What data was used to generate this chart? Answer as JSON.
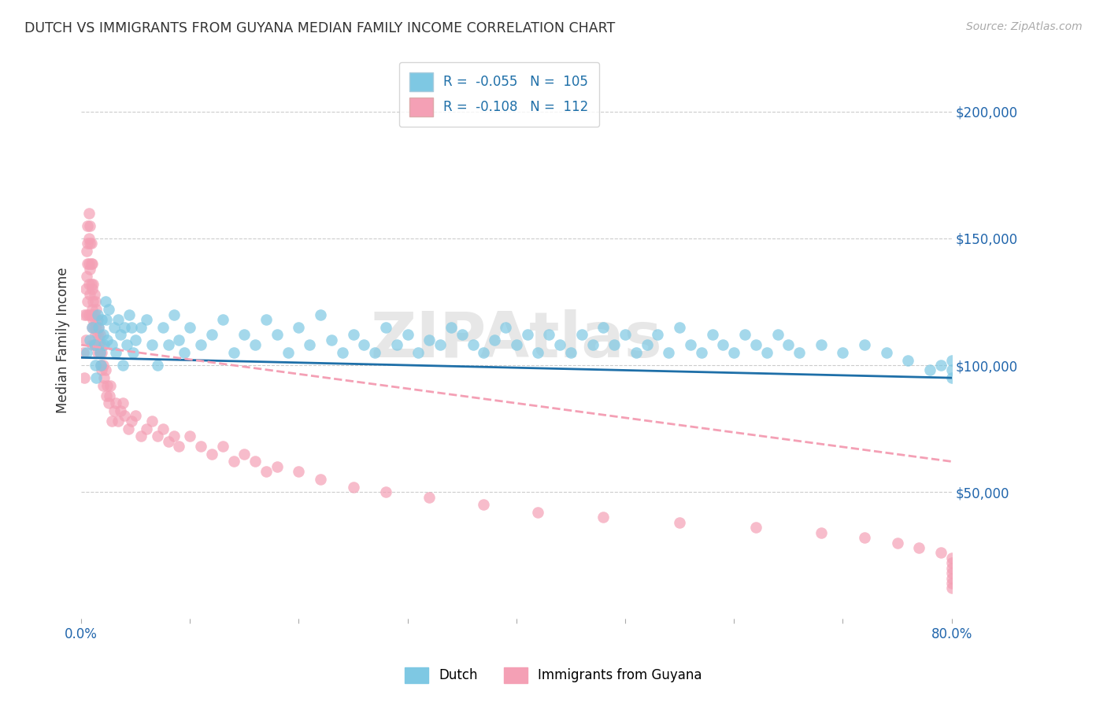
{
  "title": "DUTCH VS IMMIGRANTS FROM GUYANA MEDIAN FAMILY INCOME CORRELATION CHART",
  "source": "Source: ZipAtlas.com",
  "ylabel": "Median Family Income",
  "ytick_labels": [
    "$50,000",
    "$100,000",
    "$150,000",
    "$200,000"
  ],
  "ytick_values": [
    50000,
    100000,
    150000,
    200000
  ],
  "ylim": [
    0,
    220000
  ],
  "xlim": [
    0.0,
    0.8
  ],
  "watermark": "ZIPAtlas",
  "legend_dutch_R_val": "-0.055",
  "legend_dutch_N_val": "105",
  "legend_guyana_R_val": "-0.108",
  "legend_guyana_N_val": "112",
  "color_dutch": "#7ec8e3",
  "color_guyana": "#f4a0b5",
  "color_dutch_line": "#1e6fa8",
  "color_guyana_line": "#f4a0b5",
  "color_axis_labels": "#2166ac",
  "dutch_scatter_x": [
    0.005,
    0.008,
    0.01,
    0.012,
    0.013,
    0.014,
    0.015,
    0.016,
    0.017,
    0.018,
    0.019,
    0.02,
    0.021,
    0.022,
    0.023,
    0.024,
    0.025,
    0.028,
    0.03,
    0.032,
    0.034,
    0.036,
    0.038,
    0.04,
    0.042,
    0.044,
    0.046,
    0.048,
    0.05,
    0.055,
    0.06,
    0.065,
    0.07,
    0.075,
    0.08,
    0.085,
    0.09,
    0.095,
    0.1,
    0.11,
    0.12,
    0.13,
    0.14,
    0.15,
    0.16,
    0.17,
    0.18,
    0.19,
    0.2,
    0.21,
    0.22,
    0.23,
    0.24,
    0.25,
    0.26,
    0.27,
    0.28,
    0.29,
    0.3,
    0.31,
    0.32,
    0.33,
    0.34,
    0.35,
    0.36,
    0.37,
    0.38,
    0.39,
    0.4,
    0.41,
    0.42,
    0.43,
    0.44,
    0.45,
    0.46,
    0.47,
    0.48,
    0.49,
    0.5,
    0.51,
    0.52,
    0.53,
    0.54,
    0.55,
    0.56,
    0.57,
    0.58,
    0.59,
    0.6,
    0.61,
    0.62,
    0.63,
    0.64,
    0.65,
    0.66,
    0.68,
    0.7,
    0.72,
    0.74,
    0.76,
    0.78,
    0.79,
    0.8,
    0.8,
    0.8
  ],
  "dutch_scatter_y": [
    105000,
    110000,
    115000,
    108000,
    100000,
    95000,
    120000,
    115000,
    105000,
    100000,
    118000,
    112000,
    108000,
    125000,
    118000,
    110000,
    122000,
    108000,
    115000,
    105000,
    118000,
    112000,
    100000,
    115000,
    108000,
    120000,
    115000,
    105000,
    110000,
    115000,
    118000,
    108000,
    100000,
    115000,
    108000,
    120000,
    110000,
    105000,
    115000,
    108000,
    112000,
    118000,
    105000,
    112000,
    108000,
    118000,
    112000,
    105000,
    115000,
    108000,
    120000,
    110000,
    105000,
    112000,
    108000,
    105000,
    115000,
    108000,
    112000,
    105000,
    110000,
    108000,
    115000,
    112000,
    108000,
    105000,
    110000,
    115000,
    108000,
    112000,
    105000,
    112000,
    108000,
    105000,
    112000,
    108000,
    115000,
    108000,
    112000,
    105000,
    108000,
    112000,
    105000,
    115000,
    108000,
    105000,
    112000,
    108000,
    105000,
    112000,
    108000,
    105000,
    112000,
    108000,
    105000,
    108000,
    105000,
    108000,
    105000,
    102000,
    98000,
    100000,
    102000,
    98000,
    95000
  ],
  "guyana_scatter_x": [
    0.002,
    0.003,
    0.003,
    0.004,
    0.004,
    0.005,
    0.005,
    0.005,
    0.006,
    0.006,
    0.006,
    0.006,
    0.007,
    0.007,
    0.007,
    0.007,
    0.007,
    0.008,
    0.008,
    0.008,
    0.008,
    0.009,
    0.009,
    0.009,
    0.009,
    0.01,
    0.01,
    0.01,
    0.01,
    0.01,
    0.011,
    0.011,
    0.011,
    0.012,
    0.012,
    0.012,
    0.012,
    0.013,
    0.013,
    0.013,
    0.014,
    0.014,
    0.014,
    0.015,
    0.015,
    0.015,
    0.016,
    0.016,
    0.017,
    0.017,
    0.018,
    0.018,
    0.019,
    0.019,
    0.02,
    0.02,
    0.021,
    0.022,
    0.023,
    0.024,
    0.025,
    0.026,
    0.027,
    0.028,
    0.03,
    0.032,
    0.034,
    0.036,
    0.038,
    0.04,
    0.043,
    0.046,
    0.05,
    0.055,
    0.06,
    0.065,
    0.07,
    0.075,
    0.08,
    0.085,
    0.09,
    0.1,
    0.11,
    0.12,
    0.13,
    0.14,
    0.15,
    0.16,
    0.17,
    0.18,
    0.2,
    0.22,
    0.25,
    0.28,
    0.32,
    0.37,
    0.42,
    0.48,
    0.55,
    0.62,
    0.68,
    0.72,
    0.75,
    0.77,
    0.79,
    0.8,
    0.8,
    0.8,
    0.8,
    0.8,
    0.8,
    0.8
  ],
  "guyana_scatter_y": [
    105000,
    120000,
    95000,
    130000,
    110000,
    145000,
    135000,
    120000,
    155000,
    148000,
    140000,
    125000,
    160000,
    150000,
    140000,
    132000,
    120000,
    155000,
    148000,
    138000,
    128000,
    148000,
    140000,
    132000,
    120000,
    140000,
    130000,
    122000,
    115000,
    108000,
    132000,
    125000,
    118000,
    128000,
    120000,
    115000,
    108000,
    125000,
    118000,
    112000,
    122000,
    115000,
    108000,
    118000,
    112000,
    105000,
    115000,
    108000,
    112000,
    105000,
    108000,
    100000,
    105000,
    98000,
    100000,
    92000,
    95000,
    98000,
    88000,
    92000,
    85000,
    88000,
    92000,
    78000,
    82000,
    85000,
    78000,
    82000,
    85000,
    80000,
    75000,
    78000,
    80000,
    72000,
    75000,
    78000,
    72000,
    75000,
    70000,
    72000,
    68000,
    72000,
    68000,
    65000,
    68000,
    62000,
    65000,
    62000,
    58000,
    60000,
    58000,
    55000,
    52000,
    50000,
    48000,
    45000,
    42000,
    40000,
    38000,
    36000,
    34000,
    32000,
    30000,
    28000,
    26000,
    24000,
    22000,
    20000,
    18000,
    16000,
    14000,
    12000
  ],
  "dutch_line_x": [
    0.0,
    0.8
  ],
  "dutch_line_y": [
    103000,
    95000
  ],
  "guyana_line_x": [
    0.0,
    0.8
  ],
  "guyana_line_y": [
    108000,
    62000
  ],
  "bg_color": "#ffffff",
  "grid_color": "#cccccc",
  "xtick_positions": [
    0.0,
    0.1,
    0.2,
    0.3,
    0.4,
    0.5,
    0.6,
    0.7,
    0.8
  ],
  "xtick_show_labels": [
    true,
    false,
    false,
    false,
    false,
    false,
    false,
    false,
    true
  ]
}
